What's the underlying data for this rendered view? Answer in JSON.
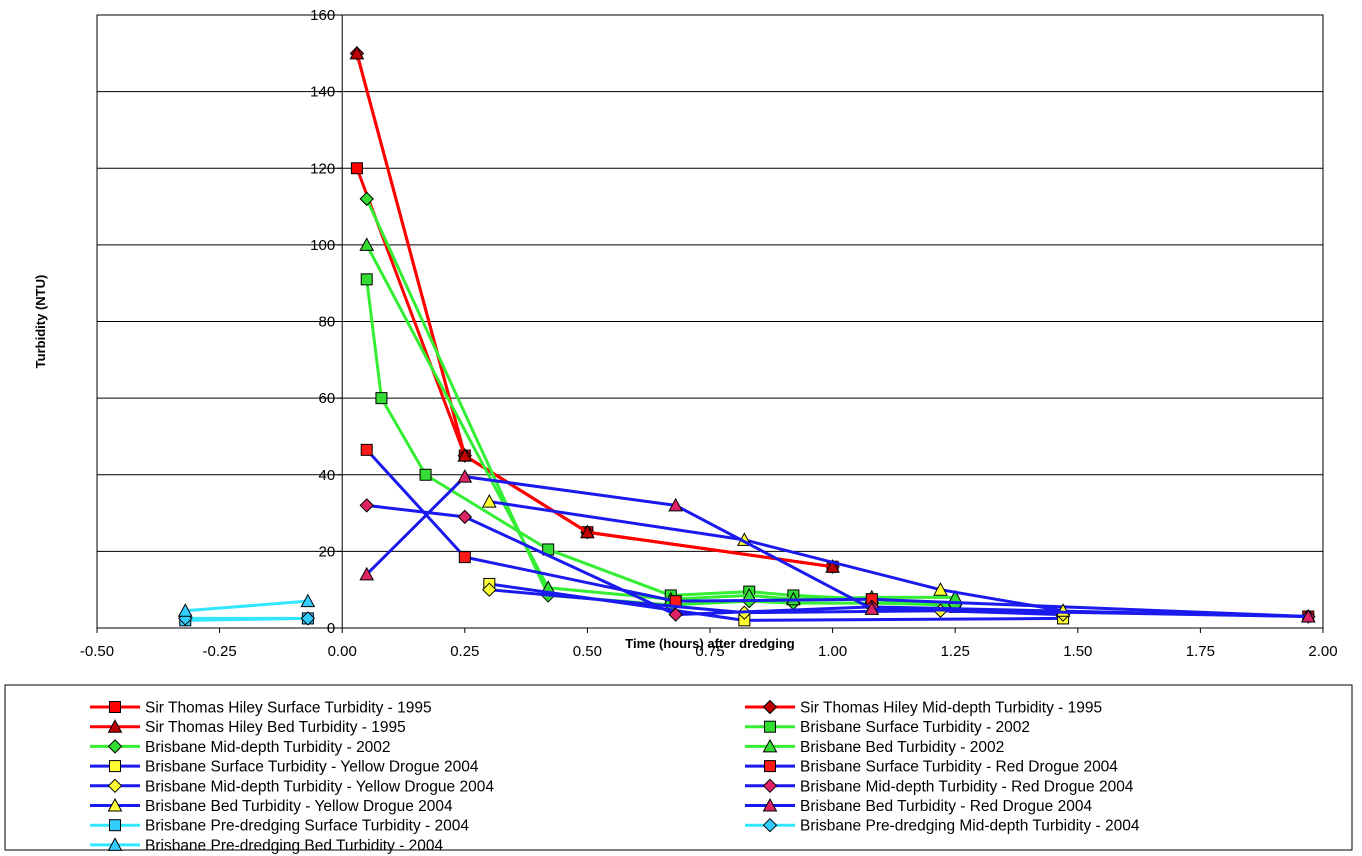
{
  "chart_data": {
    "type": "line",
    "title": "",
    "xlabel": "Time (hours) after dredging",
    "ylabel": "Turbidity (NTU)",
    "xlim": [
      -0.5,
      2.0
    ],
    "ylim": [
      0,
      160
    ],
    "x_ticks": [
      "-0.50",
      "-0.25",
      "0.00",
      "0.25",
      "0.50",
      "0.75",
      "1.00",
      "1.25",
      "1.50",
      "1.75",
      "2.00"
    ],
    "y_ticks": [
      "0",
      "20",
      "40",
      "60",
      "80",
      "100",
      "120",
      "140",
      "160"
    ],
    "grid": "horizontal",
    "legend_position": "bottom",
    "series": [
      {
        "name": "Sir Thomas Hiley Surface Turbidity - 1995",
        "color": "#ff0000",
        "marker": "square",
        "marker_fill": "#ff0000",
        "x": [
          0.03,
          0.25,
          0.5,
          1.0
        ],
        "y": [
          120,
          45,
          25,
          16
        ]
      },
      {
        "name": "Sir Thomas Hiley Mid-depth Turbidity - 1995",
        "color": "#ff0000",
        "marker": "diamond",
        "marker_fill": "#c00000",
        "x": [
          0.03,
          0.25,
          0.5,
          1.0
        ],
        "y": [
          150,
          45,
          25,
          16
        ]
      },
      {
        "name": "Sir Thomas Hiley Bed Turbidity - 1995",
        "color": "#ff0000",
        "marker": "triangle",
        "marker_fill": "#c00000",
        "x": [
          0.03,
          0.25,
          0.5,
          1.0
        ],
        "y": [
          150,
          45,
          25,
          16
        ]
      },
      {
        "name": "Brisbane Surface Turbidity - 2002",
        "color": "#33ee33",
        "marker": "square",
        "marker_fill": "#33dd33",
        "x": [
          0.05,
          0.08,
          0.17,
          0.42,
          0.67,
          0.83,
          0.92,
          1.08,
          1.25
        ],
        "y": [
          91,
          60,
          40,
          20.5,
          8.5,
          9.5,
          8.5,
          7.5,
          5.5
        ]
      },
      {
        "name": "Brisbane Mid-depth Turbidity - 2002",
        "color": "#33ee33",
        "marker": "diamond",
        "marker_fill": "#33dd33",
        "x": [
          0.05,
          0.42,
          0.67,
          0.83,
          0.92,
          1.08,
          1.25
        ],
        "y": [
          112,
          8.5,
          6,
          7,
          6.5,
          6.5,
          6
        ]
      },
      {
        "name": "Brisbane Bed Turbidity - 2002",
        "color": "#33ee33",
        "marker": "triangle",
        "marker_fill": "#33dd33",
        "x": [
          0.05,
          0.42,
          0.67,
          0.83,
          0.92,
          1.08,
          1.25
        ],
        "y": [
          100,
          10.5,
          7.5,
          8.5,
          7.5,
          8,
          8
        ]
      },
      {
        "name": "Brisbane Surface Turbidity - Yellow Drogue 2004",
        "color": "#1a1aee",
        "marker": "square",
        "marker_fill": "#ffff33",
        "x": [
          0.3,
          0.82,
          1.47
        ],
        "y": [
          11.5,
          2,
          2.5
        ]
      },
      {
        "name": "Brisbane Surface Turbidity - Red Drogue 2004",
        "color": "#1a1aee",
        "marker": "square",
        "marker_fill": "#ff1a1a",
        "x": [
          0.05,
          0.25,
          0.68,
          1.08,
          1.97
        ],
        "y": [
          46.5,
          18.5,
          7,
          7.5,
          3
        ]
      },
      {
        "name": "Brisbane Mid-depth Turbidity - Yellow Drogue 2004",
        "color": "#1a1aee",
        "marker": "diamond",
        "marker_fill": "#ffff33",
        "x": [
          0.3,
          0.82,
          1.22,
          1.47
        ],
        "y": [
          10,
          4,
          4.5,
          3.5
        ]
      },
      {
        "name": "Brisbane Mid-depth Turbidity - Red Drogue 2004",
        "color": "#1a1aee",
        "marker": "diamond",
        "marker_fill": "#dd2266",
        "x": [
          0.05,
          0.25,
          0.68,
          1.08,
          1.97
        ],
        "y": [
          32,
          29,
          3.5,
          5.5,
          3
        ]
      },
      {
        "name": "Brisbane Bed Turbidity - Yellow Drogue 2004",
        "color": "#1a1aee",
        "marker": "triangle",
        "marker_fill": "#ffff33",
        "x": [
          0.3,
          0.82,
          1.22,
          1.47
        ],
        "y": [
          33,
          23,
          10,
          4.5
        ]
      },
      {
        "name": "Brisbane Bed Turbidity - Red Drogue 2004",
        "color": "#1a1aee",
        "marker": "triangle",
        "marker_fill": "#dd2266",
        "x": [
          0.05,
          0.25,
          0.68,
          1.08,
          1.97
        ],
        "y": [
          14,
          39.5,
          32,
          5,
          3
        ]
      },
      {
        "name": "Brisbane Pre-dredging Surface Turbidity - 2004",
        "color": "#33e6ff",
        "marker": "square",
        "marker_fill": "#33ccff",
        "x": [
          -0.32,
          -0.07
        ],
        "y": [
          2,
          2.5
        ]
      },
      {
        "name": "Brisbane Pre-dredging Mid-depth Turbidity - 2004",
        "color": "#33e6ff",
        "marker": "diamond",
        "marker_fill": "#33ccff",
        "x": [
          -0.32,
          -0.07
        ],
        "y": [
          2.5,
          2.5
        ]
      },
      {
        "name": "Brisbane Pre-dredging Bed Turbidity - 2004",
        "color": "#33e6ff",
        "marker": "triangle",
        "marker_fill": "#33ccff",
        "x": [
          -0.32,
          -0.07
        ],
        "y": [
          4.5,
          7
        ]
      }
    ]
  }
}
